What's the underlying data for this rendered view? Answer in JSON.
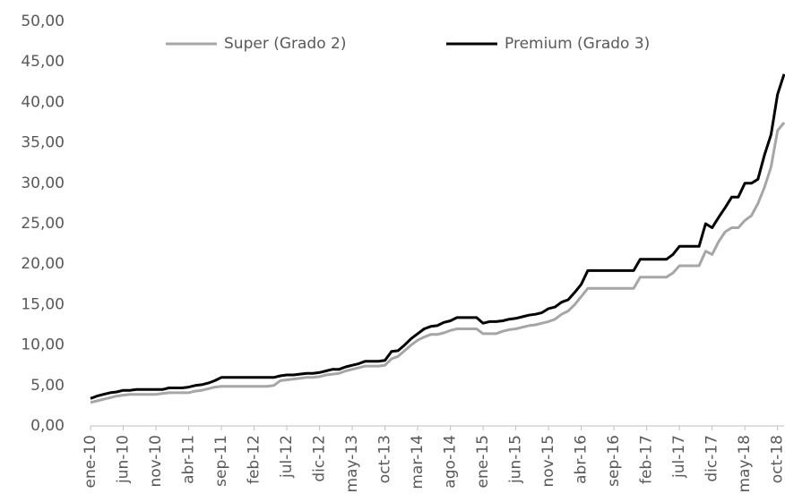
{
  "chart_data": {
    "type": "line",
    "categories": [
      "ene-10",
      null,
      null,
      null,
      null,
      "jun-10",
      null,
      null,
      null,
      null,
      "nov-10",
      null,
      null,
      null,
      null,
      "abr-11",
      null,
      null,
      null,
      null,
      "sep-11",
      null,
      null,
      null,
      null,
      "feb-12",
      null,
      null,
      null,
      null,
      "jul-12",
      null,
      null,
      null,
      null,
      "dic-12",
      null,
      null,
      null,
      null,
      "may-13",
      null,
      null,
      null,
      null,
      "oct-13",
      null,
      null,
      null,
      null,
      "mar-14",
      null,
      null,
      null,
      null,
      "ago-14",
      null,
      null,
      null,
      null,
      "ene-15",
      null,
      null,
      null,
      null,
      "jun-15",
      null,
      null,
      null,
      null,
      "nov-15",
      null,
      null,
      null,
      null,
      "abr-16",
      null,
      null,
      null,
      null,
      "sep-16",
      null,
      null,
      null,
      null,
      "feb-17",
      null,
      null,
      null,
      null,
      "jul-17",
      null,
      null,
      null,
      null,
      "dic-17",
      null,
      null,
      null,
      null,
      "may-18",
      null,
      null,
      null,
      null,
      "oct-18",
      null
    ],
    "series": [
      {
        "name": "Super (Grado 2)",
        "color": "#a6a6a6",
        "values": [
          2.9,
          3.1,
          3.3,
          3.5,
          3.7,
          3.8,
          3.9,
          3.9,
          3.9,
          3.9,
          3.9,
          4.0,
          4.1,
          4.1,
          4.1,
          4.1,
          4.3,
          4.4,
          4.6,
          4.8,
          4.9,
          4.9,
          4.9,
          4.9,
          4.9,
          4.9,
          4.9,
          4.9,
          5.0,
          5.6,
          5.7,
          5.8,
          5.9,
          6.0,
          6.0,
          6.1,
          6.3,
          6.4,
          6.5,
          6.8,
          7.0,
          7.2,
          7.4,
          7.4,
          7.4,
          7.5,
          8.3,
          8.6,
          9.3,
          10.0,
          10.6,
          11.0,
          11.3,
          11.3,
          11.5,
          11.8,
          12.0,
          12.0,
          12.0,
          12.0,
          11.4,
          11.4,
          11.4,
          11.7,
          11.9,
          12.0,
          12.2,
          12.4,
          12.5,
          12.7,
          12.9,
          13.2,
          13.8,
          14.2,
          15.0,
          16.0,
          17.0,
          17.0,
          17.0,
          17.0,
          17.0,
          17.0,
          17.0,
          17.0,
          18.4,
          18.4,
          18.4,
          18.4,
          18.4,
          18.9,
          19.8,
          19.8,
          19.8,
          19.8,
          21.6,
          21.2,
          22.8,
          24.0,
          24.5,
          24.5,
          25.4,
          26.0,
          27.5,
          29.5,
          32.0,
          36.5,
          37.5
        ]
      },
      {
        "name": "Premium (Grado 3)",
        "color": "#000000",
        "values": [
          3.4,
          3.7,
          3.9,
          4.1,
          4.2,
          4.4,
          4.4,
          4.5,
          4.5,
          4.5,
          4.5,
          4.5,
          4.7,
          4.7,
          4.7,
          4.8,
          5.0,
          5.1,
          5.3,
          5.6,
          6.0,
          6.0,
          6.0,
          6.0,
          6.0,
          6.0,
          6.0,
          6.0,
          6.0,
          6.2,
          6.3,
          6.3,
          6.4,
          6.5,
          6.5,
          6.6,
          6.8,
          7.0,
          7.0,
          7.3,
          7.5,
          7.7,
          8.0,
          8.0,
          8.0,
          8.1,
          9.2,
          9.3,
          10.0,
          10.8,
          11.4,
          12.0,
          12.3,
          12.4,
          12.8,
          13.0,
          13.4,
          13.4,
          13.4,
          13.4,
          12.7,
          12.9,
          12.9,
          13.0,
          13.2,
          13.3,
          13.5,
          13.7,
          13.8,
          14.0,
          14.5,
          14.7,
          15.3,
          15.6,
          16.5,
          17.5,
          19.2,
          19.2,
          19.2,
          19.2,
          19.2,
          19.2,
          19.2,
          19.2,
          20.6,
          20.6,
          20.6,
          20.6,
          20.6,
          21.2,
          22.2,
          22.2,
          22.2,
          22.2,
          25.0,
          24.5,
          25.8,
          27.0,
          28.3,
          28.3,
          30.0,
          30.0,
          30.5,
          33.5,
          36.0,
          41.0,
          43.5
        ]
      }
    ],
    "ylim": [
      0,
      50
    ],
    "yticks": [
      {
        "value": 0,
        "label": "0,00"
      },
      {
        "value": 5,
        "label": "5,00"
      },
      {
        "value": 10,
        "label": "10,00"
      },
      {
        "value": 15,
        "label": "15,00"
      },
      {
        "value": 20,
        "label": "20,00"
      },
      {
        "value": 25,
        "label": "25,00"
      },
      {
        "value": 30,
        "label": "30,00"
      },
      {
        "value": 35,
        "label": "35,00"
      },
      {
        "value": 40,
        "label": "40,00"
      },
      {
        "value": 45,
        "label": "45,00"
      },
      {
        "value": 50,
        "label": "50,00"
      }
    ],
    "grid": false,
    "legend": "top"
  }
}
